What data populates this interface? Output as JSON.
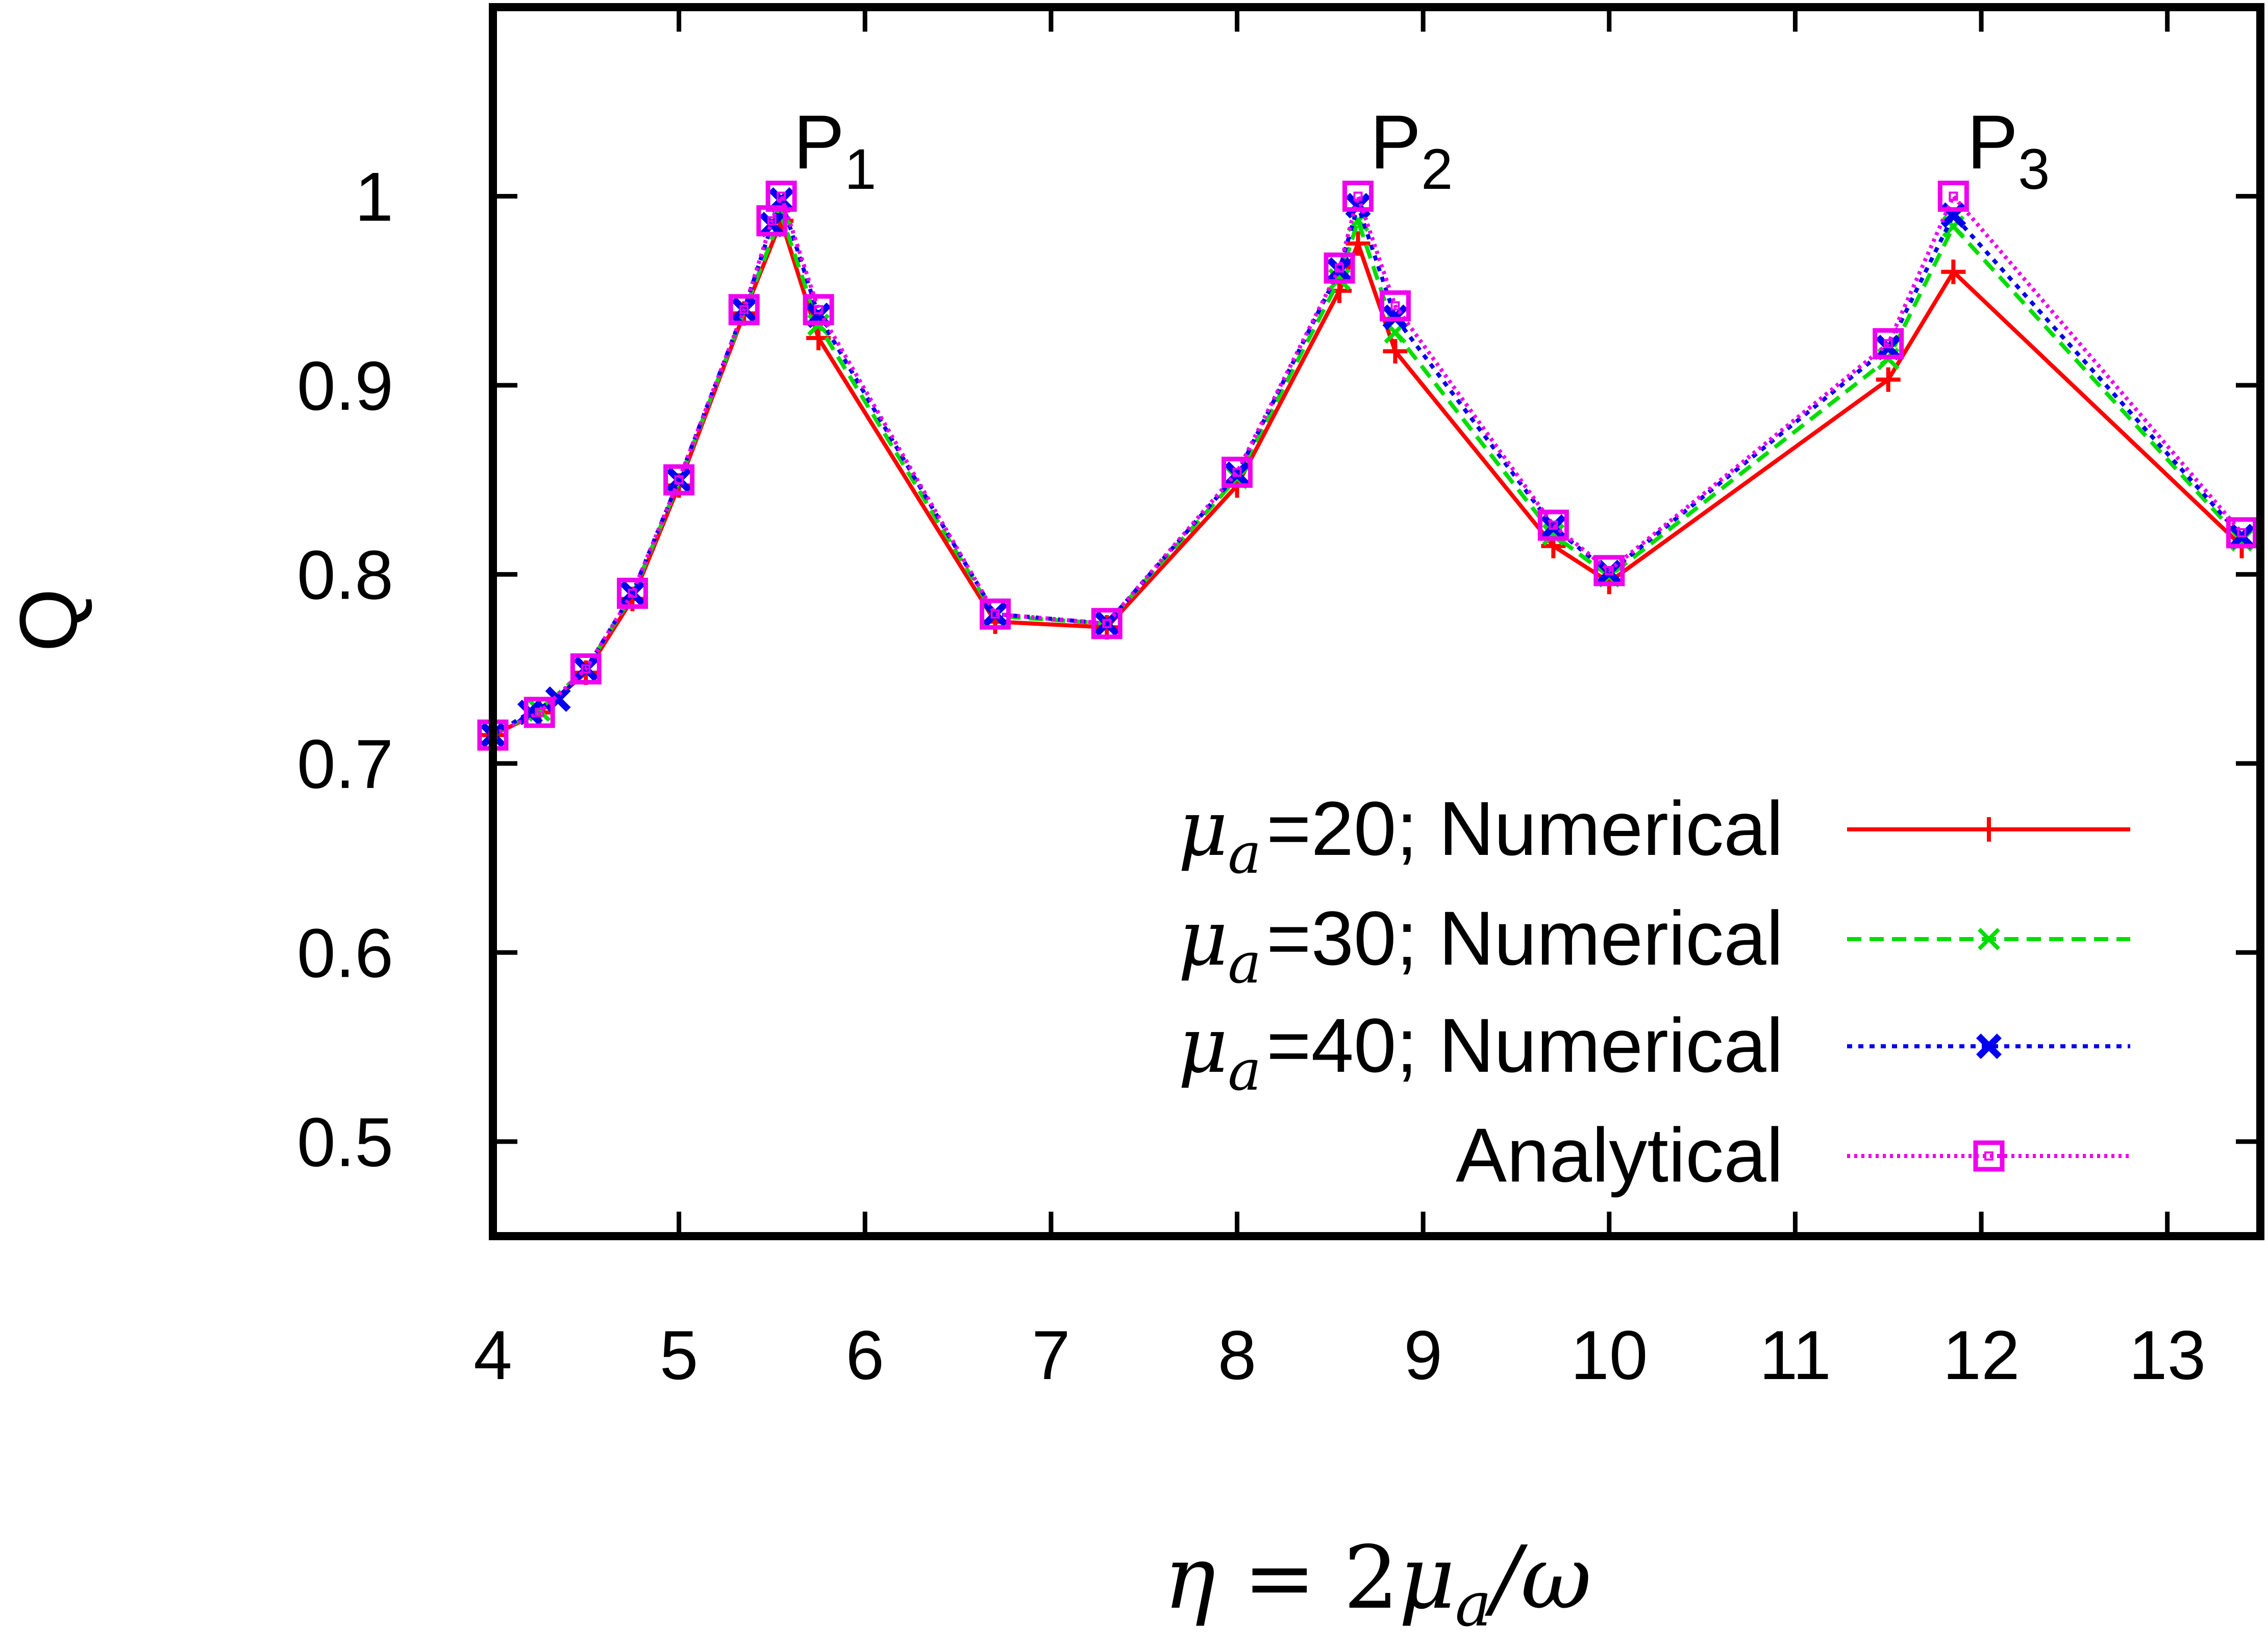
{
  "chart_data": {
    "type": "line",
    "xlabel": {
      "lhs": "η",
      "eq": " = 2",
      "mu": "μ",
      "sub": "a",
      "tail": "/ω"
    },
    "ylabel": "Q",
    "xlim": [
      4,
      13.5
    ],
    "ylim": [
      0.45,
      1.1
    ],
    "xticks": [
      "4",
      "5",
      "6",
      "7",
      "8",
      "9",
      "10",
      "11",
      "12",
      "13"
    ],
    "yticks": [
      "0.5",
      "0.6",
      "0.7",
      "0.8",
      "0.9",
      "1"
    ],
    "grid": false,
    "legend_position": "bottom-right",
    "annotations": [
      {
        "text": "P",
        "sub": "1",
        "x": 5.55,
        "y": 1.0
      },
      {
        "text": "P",
        "sub": "2",
        "x": 8.65,
        "y": 1.0
      },
      {
        "text": "P",
        "sub": "3",
        "x": 11.85,
        "y": 1.0
      }
    ],
    "series": [
      {
        "name": "=20; Numerical",
        "mu_prefix": "μ",
        "mu_sub": "a",
        "color": "#ff0000",
        "dash": "",
        "marker": "plus",
        "x": [
          4.0,
          4.25,
          4.5,
          4.75,
          5.0,
          5.35,
          5.55,
          5.75,
          6.7,
          7.3,
          8.0,
          8.55,
          8.65,
          8.85,
          9.7,
          10.0,
          11.5,
          11.85,
          13.4
        ],
        "y": [
          0.715,
          0.727,
          0.748,
          0.787,
          0.847,
          0.938,
          0.987,
          0.925,
          0.775,
          0.772,
          0.847,
          0.95,
          0.975,
          0.918,
          0.815,
          0.796,
          0.903,
          0.96,
          0.815
        ]
      },
      {
        "name": "=30; Numerical",
        "mu_prefix": "μ",
        "mu_sub": "a",
        "color": "#00dd00",
        "dash": "28,16",
        "marker": "x",
        "x": [
          4.0,
          4.25,
          4.5,
          4.75,
          5.0,
          5.35,
          5.55,
          5.75,
          6.7,
          7.3,
          8.0,
          8.55,
          8.65,
          8.85,
          9.7,
          10.0,
          11.5,
          11.85,
          13.4
        ],
        "y": [
          0.715,
          0.728,
          0.75,
          0.789,
          0.849,
          0.939,
          0.99,
          0.932,
          0.778,
          0.774,
          0.851,
          0.956,
          0.987,
          0.928,
          0.821,
          0.799,
          0.914,
          0.984,
          0.818
        ]
      },
      {
        "name": "=40; Numerical",
        "mu_prefix": "μ",
        "mu_sub": "a",
        "color": "#0000ee",
        "dash": "10,12",
        "marker": "xbold",
        "x": [
          4.0,
          4.2,
          4.35,
          4.5,
          4.75,
          5.0,
          5.35,
          5.5,
          5.55,
          5.75,
          6.7,
          7.3,
          8.0,
          8.55,
          8.65,
          8.85,
          9.7,
          10.0,
          11.5,
          11.85,
          13.4
        ],
        "y": [
          0.715,
          0.727,
          0.734,
          0.75,
          0.79,
          0.85,
          0.94,
          0.985,
          0.998,
          0.937,
          0.779,
          0.774,
          0.853,
          0.961,
          0.995,
          0.936,
          0.825,
          0.801,
          0.92,
          0.99,
          0.82
        ]
      },
      {
        "name": "Analytical",
        "mu_prefix": "",
        "mu_sub": "",
        "color": "#ee00ee",
        "dash": "6,8",
        "marker": "square",
        "x": [
          4.0,
          4.25,
          4.5,
          4.75,
          5.0,
          5.35,
          5.5,
          5.55,
          5.75,
          6.7,
          7.3,
          8.0,
          8.55,
          8.65,
          8.85,
          9.7,
          10.0,
          11.5,
          11.85,
          13.4
        ],
        "y": [
          0.715,
          0.727,
          0.75,
          0.79,
          0.85,
          0.94,
          0.987,
          1.0,
          0.94,
          0.779,
          0.774,
          0.854,
          0.962,
          1.0,
          0.942,
          0.826,
          0.802,
          0.922,
          1.0,
          0.822
        ]
      }
    ]
  }
}
